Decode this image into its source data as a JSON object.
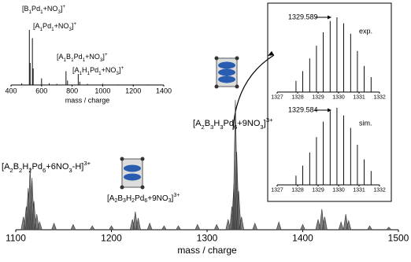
{
  "chart_data": [
    {
      "type": "stick",
      "xlabel": "mass / charge",
      "xlim": [
        1100,
        1500
      ],
      "xticks": [
        1100,
        1200,
        1300,
        1400,
        1500
      ],
      "color": "#333333",
      "x": [
        1108,
        1111,
        1113,
        1115,
        1117,
        1119,
        1122,
        1125,
        1140,
        1160,
        1180,
        1200,
        1222,
        1225,
        1228,
        1240,
        1255,
        1270,
        1290,
        1310,
        1322,
        1326,
        1328,
        1329.6,
        1331,
        1333,
        1336,
        1350,
        1375,
        1400,
        1416,
        1420,
        1423,
        1440,
        1445,
        1448,
        1470,
        1490
      ],
      "values": [
        10,
        18,
        32,
        48,
        40,
        22,
        12,
        6,
        5,
        4,
        3,
        3,
        8,
        14,
        9,
        5,
        3,
        3,
        4,
        4,
        8,
        18,
        35,
        100,
        60,
        30,
        10,
        5,
        6,
        4,
        8,
        16,
        10,
        6,
        12,
        7,
        3,
        2
      ],
      "annotations": [
        "[A2B3H3Pd6+9NO3]3+",
        "[A2B2H2Pd6+6NO3-H]3+",
        "[A2B3H2Pd6+9NO3]3+"
      ]
    },
    {
      "type": "stick",
      "xlabel": "mass / charge",
      "xlim": [
        400,
        1400
      ],
      "xticks": [
        400,
        600,
        800,
        1000,
        1200,
        1400
      ],
      "color": "#111111",
      "x": [
        470,
        520,
        525,
        540,
        545,
        600,
        650,
        700,
        760,
        770,
        840,
        850,
        900,
        1000,
        1100,
        1200,
        1300
      ],
      "values": [
        3,
        100,
        40,
        85,
        30,
        12,
        3,
        2,
        25,
        8,
        20,
        6,
        2,
        2,
        1,
        1,
        1
      ],
      "annotations": [
        "[B1Pd1+NO3]+",
        "[A1Pd1+NO3]+",
        "[A1B1Pd1+NO3]+",
        "[A1H1Pd1+NO3]+"
      ]
    },
    {
      "type": "stick",
      "xlim": [
        1327,
        1332
      ],
      "xticks": [
        1327,
        1328,
        1329,
        1330,
        1331,
        1332
      ],
      "color": "#111111",
      "x": [
        1327.92,
        1328.25,
        1328.59,
        1328.92,
        1329.25,
        1329.59,
        1329.92,
        1330.25,
        1330.59,
        1330.92,
        1331.25,
        1331.59
      ],
      "values": [
        15,
        28,
        45,
        62,
        80,
        95,
        100,
        92,
        78,
        55,
        35,
        20
      ],
      "annotations": [
        "1329.589",
        "exp."
      ]
    },
    {
      "type": "stick",
      "xlim": [
        1327,
        1332
      ],
      "xticks": [
        1327,
        1328,
        1329,
        1330,
        1331,
        1332
      ],
      "color": "#111111",
      "x": [
        1327.92,
        1328.25,
        1328.59,
        1328.92,
        1329.25,
        1329.59,
        1329.92,
        1330.25,
        1330.59,
        1330.92,
        1331.25,
        1331.59
      ],
      "values": [
        12,
        25,
        42,
        62,
        82,
        96,
        100,
        90,
        74,
        52,
        33,
        18
      ],
      "annotations": [
        "1329.584",
        "sim."
      ]
    }
  ]
}
